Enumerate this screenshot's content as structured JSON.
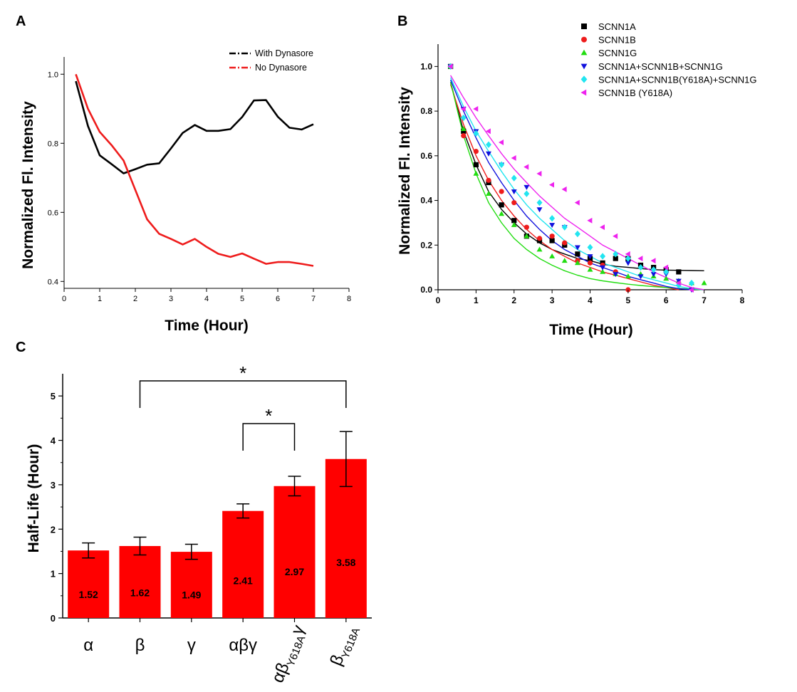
{
  "panels": {
    "a": "A",
    "b": "B",
    "c": "C"
  },
  "chart_data": [
    {
      "type": "line",
      "panel": "A",
      "xlabel": "Time (Hour)",
      "ylabel": "Normalized Fl. Intensity",
      "xlim": [
        0,
        8
      ],
      "ylim": [
        0.38,
        1.05
      ],
      "xticks": [
        "0",
        "1",
        "2",
        "3",
        "4",
        "5",
        "6",
        "7",
        "8"
      ],
      "yticks": [
        "0.4",
        "0.6",
        "0.8",
        "1.0"
      ],
      "legend_position": "top-right",
      "series": [
        {
          "name": "With Dynasore",
          "color": "#000000",
          "x": [
            0.33,
            0.67,
            1.0,
            1.33,
            1.67,
            2.0,
            2.33,
            2.67,
            3.0,
            3.33,
            3.67,
            4.0,
            4.33,
            4.67,
            5.0,
            5.33,
            5.67,
            6.0,
            6.33,
            6.67,
            7.0
          ],
          "y": [
            0.98,
            0.85,
            0.765,
            0.74,
            0.713,
            0.725,
            0.738,
            0.742,
            0.785,
            0.83,
            0.853,
            0.836,
            0.836,
            0.841,
            0.876,
            0.924,
            0.925,
            0.877,
            0.845,
            0.84,
            0.855
          ]
        },
        {
          "name": "No Dynasore",
          "color": "#ee1c1c",
          "x": [
            0.33,
            0.67,
            1.0,
            1.33,
            1.67,
            2.0,
            2.33,
            2.67,
            3.0,
            3.33,
            3.67,
            4.0,
            4.33,
            4.67,
            5.0,
            5.33,
            5.67,
            6.0,
            6.33,
            6.67,
            7.0
          ],
          "y": [
            1.0,
            0.9,
            0.833,
            0.795,
            0.75,
            0.665,
            0.58,
            0.538,
            0.523,
            0.507,
            0.523,
            0.5,
            0.48,
            0.471,
            0.481,
            0.466,
            0.451,
            0.456,
            0.456,
            0.451,
            0.445
          ]
        }
      ]
    },
    {
      "type": "scatter",
      "panel": "B",
      "xlabel": "Time (Hour)",
      "ylabel": "Normalized Fl. Intensity",
      "xlim": [
        0,
        8
      ],
      "ylim": [
        0,
        1.1
      ],
      "xticks": [
        "0",
        "1",
        "2",
        "3",
        "4",
        "5",
        "6",
        "7",
        "8"
      ],
      "yticks": [
        "0.0",
        "0.2",
        "0.4",
        "0.6",
        "0.8",
        "1.0"
      ],
      "legend_position": "top-right",
      "x": [
        0.33,
        0.67,
        1.0,
        1.33,
        1.67,
        2.0,
        2.33,
        2.67,
        3.0,
        3.33,
        3.67,
        4.0,
        4.33,
        4.67,
        5.0,
        5.33,
        5.67,
        6.0,
        6.33,
        6.67,
        7.0
      ],
      "series": [
        {
          "name": "SCNN1A",
          "color": "#000000",
          "marker": "square",
          "y": [
            1.0,
            0.71,
            0.56,
            0.48,
            0.38,
            0.31,
            0.24,
            0.22,
            0.22,
            0.2,
            0.16,
            0.14,
            0.12,
            0.14,
            0.14,
            0.11,
            0.1,
            0.09,
            0.08,
            null,
            null
          ],
          "fit": [
            0.93,
            0.71,
            0.56,
            0.44,
            0.36,
            0.3,
            0.25,
            0.21,
            0.18,
            0.16,
            0.14,
            0.13,
            0.115,
            0.105,
            0.1,
            0.095,
            0.09,
            0.088,
            0.087,
            0.086,
            0.085
          ]
        },
        {
          "name": "SCNN1B",
          "color": "#ee1c1c",
          "marker": "circle",
          "y": [
            1.0,
            0.69,
            0.62,
            0.49,
            0.44,
            0.39,
            0.28,
            0.23,
            0.24,
            0.21,
            0.13,
            0.12,
            0.11,
            0.08,
            0.0,
            null,
            null,
            null,
            null,
            null,
            null
          ],
          "fit": [
            0.92,
            0.74,
            0.6,
            0.49,
            0.4,
            0.33,
            0.27,
            0.22,
            0.18,
            0.15,
            0.12,
            0.1,
            0.08,
            0.065,
            0.05,
            0.035,
            0.02,
            0.01,
            0.0,
            null,
            null
          ]
        },
        {
          "name": "SCNN1G",
          "color": "#22dd11",
          "marker": "triangle-up",
          "y": [
            1.0,
            0.72,
            0.52,
            0.43,
            0.34,
            0.29,
            0.24,
            0.18,
            0.15,
            0.13,
            0.12,
            0.09,
            0.08,
            0.07,
            0.06,
            0.07,
            0.06,
            0.05,
            0.04,
            0.03,
            0.03
          ],
          "fit": [
            0.93,
            0.69,
            0.52,
            0.39,
            0.3,
            0.23,
            0.18,
            0.14,
            0.11,
            0.085,
            0.065,
            0.05,
            0.04,
            0.032,
            0.025,
            0.019,
            0.014,
            0.01,
            0.006,
            0.003,
            0.0
          ]
        },
        {
          "name": "SCNN1A+SCNN1B+SCNN1G",
          "color": "#1111dd",
          "marker": "triangle-down",
          "y": [
            1.0,
            0.81,
            0.71,
            0.61,
            0.56,
            0.44,
            0.46,
            0.36,
            0.29,
            0.28,
            0.19,
            0.15,
            0.1,
            0.07,
            0.12,
            0.06,
            0.07,
            0.07,
            0.04,
            0.0,
            null
          ],
          "fit": [
            0.94,
            0.8,
            0.68,
            0.57,
            0.48,
            0.4,
            0.33,
            0.27,
            0.22,
            0.18,
            0.15,
            0.12,
            0.1,
            0.08,
            0.06,
            0.045,
            0.03,
            0.015,
            0.005,
            0.0,
            null
          ]
        },
        {
          "name": "SCNN1A+SCNN1B(Y618A)+SCNN1G",
          "color": "#22e5f0",
          "marker": "diamond",
          "y": [
            1.0,
            0.77,
            0.7,
            0.65,
            0.56,
            0.5,
            0.43,
            0.39,
            0.32,
            0.28,
            0.25,
            0.19,
            0.15,
            0.16,
            0.14,
            0.1,
            0.09,
            0.08,
            0.02,
            0.03,
            null
          ],
          "fit": [
            0.95,
            0.82,
            0.71,
            0.62,
            0.53,
            0.45,
            0.38,
            0.32,
            0.27,
            0.22,
            0.18,
            0.15,
            0.12,
            0.1,
            0.08,
            0.06,
            0.045,
            0.03,
            0.015,
            0.005,
            0.0
          ]
        },
        {
          "name": "SCNN1B (Y618A)",
          "color": "#ee22ee",
          "marker": "triangle-left",
          "y": [
            1.0,
            0.81,
            0.81,
            0.71,
            0.66,
            0.59,
            0.55,
            0.52,
            0.47,
            0.45,
            0.39,
            0.31,
            0.28,
            0.24,
            0.16,
            0.14,
            0.13,
            0.1,
            0.03,
            0.0,
            null
          ],
          "fit": [
            0.96,
            0.86,
            0.77,
            0.69,
            0.61,
            0.54,
            0.48,
            0.42,
            0.37,
            0.32,
            0.28,
            0.24,
            0.2,
            0.17,
            0.14,
            0.11,
            0.08,
            0.055,
            0.03,
            0.01,
            0.0
          ]
        }
      ]
    },
    {
      "type": "bar",
      "panel": "C",
      "xlabel": "",
      "ylabel": "Half-Life (Hour)",
      "ylim": [
        0,
        5.5
      ],
      "yticks": [
        "0",
        "1",
        "2",
        "3",
        "4",
        "5"
      ],
      "bar_color": "#ff0000",
      "categories": [
        "α",
        "β",
        "γ",
        "αβγ",
        "αβY618Aγ",
        "βY618A"
      ],
      "category_parts": [
        {
          "base": "α",
          "sub": "",
          "tail": ""
        },
        {
          "base": "β",
          "sub": "",
          "tail": ""
        },
        {
          "base": "γ",
          "sub": "",
          "tail": ""
        },
        {
          "base": "αβγ",
          "sub": "",
          "tail": ""
        },
        {
          "base": "αβ",
          "sub": "Y618A",
          "tail": "γ"
        },
        {
          "base": "β",
          "sub": "Y618A",
          "tail": ""
        }
      ],
      "values": [
        1.52,
        1.62,
        1.49,
        2.41,
        2.97,
        3.58
      ],
      "value_labels": [
        "1.52",
        "1.62",
        "1.49",
        "2.41",
        "2.97",
        "3.58"
      ],
      "errors": [
        0.17,
        0.2,
        0.17,
        0.16,
        0.22,
        0.62
      ],
      "significance": [
        {
          "from": "β",
          "to": "βY618A",
          "label": "*"
        },
        {
          "from": "αβγ",
          "to": "αβY618Aγ",
          "label": "*"
        }
      ]
    }
  ]
}
